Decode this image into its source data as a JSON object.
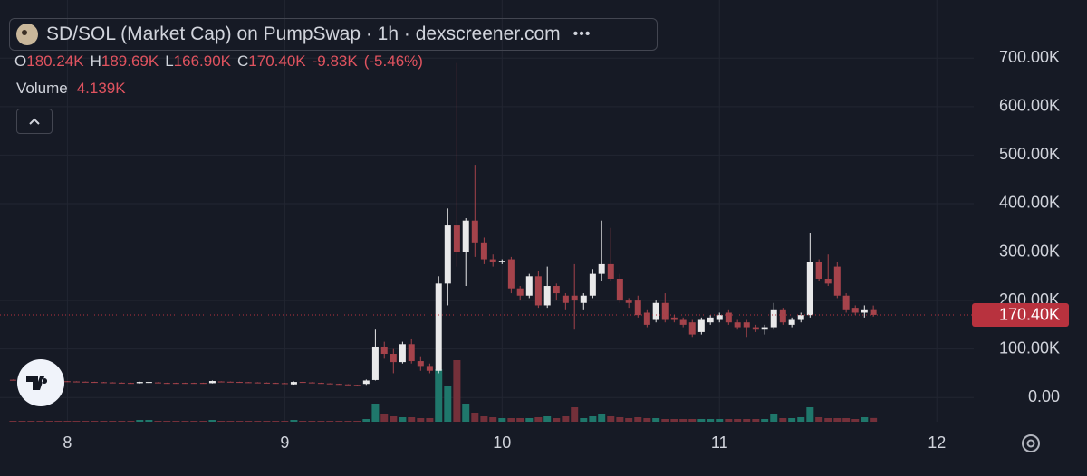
{
  "chart_data": {
    "type": "candlestick",
    "title": "SD/SOL (Market Cap) on PumpSwap · 1h · dexscreener.com",
    "ohlc": [
      {
        "key": "O",
        "value": 180240,
        "label": "180.24K"
      },
      {
        "key": "H",
        "value": 189690,
        "label": "189.69K"
      },
      {
        "key": "L",
        "value": 166900,
        "label": "166.90K"
      },
      {
        "key": "C",
        "value": 170400,
        "label": "170.40K"
      }
    ],
    "change": {
      "value": -9830,
      "label": "-9.83K"
    },
    "change_percent": {
      "value": -5.46,
      "label": "(-5.46%)"
    },
    "volume_title": "Volume",
    "volume_current": {
      "value": 4139,
      "label": "4.139K"
    },
    "last_price": {
      "value": 170400,
      "label": "170.40K"
    },
    "xlim": [
      7.69,
      12.17
    ],
    "xticks": [
      8,
      9,
      10,
      11,
      12
    ],
    "ylim": [
      -50000,
      820000
    ],
    "yticks": [
      {
        "value": 0,
        "label": "0.00"
      },
      {
        "value": 100000,
        "label": "100.00K"
      },
      {
        "value": 200000,
        "label": "200.00K"
      },
      {
        "value": 300000,
        "label": "300.00K"
      },
      {
        "value": 400000,
        "label": "400.00K"
      },
      {
        "value": 500000,
        "label": "500.00K"
      },
      {
        "value": 600000,
        "label": "600.00K"
      },
      {
        "value": 700000,
        "label": "700.00K"
      }
    ],
    "y2lim": [
      0,
      466000
    ],
    "grid": true,
    "up_color": "#e9e9ea",
    "down_color": "#a5434b",
    "volume_up_color": "#1f776b",
    "volume_down_color": "#74303a",
    "x": [
      7.75,
      7.792,
      7.833,
      7.875,
      7.917,
      7.958,
      8.0,
      8.042,
      8.083,
      8.125,
      8.167,
      8.208,
      8.25,
      8.292,
      8.333,
      8.375,
      8.417,
      8.458,
      8.5,
      8.542,
      8.583,
      8.625,
      8.667,
      8.708,
      8.75,
      8.792,
      8.833,
      8.875,
      8.917,
      8.958,
      9.0,
      9.042,
      9.083,
      9.125,
      9.167,
      9.208,
      9.25,
      9.292,
      9.333,
      9.375,
      9.417,
      9.458,
      9.5,
      9.542,
      9.583,
      9.625,
      9.667,
      9.708,
      9.75,
      9.792,
      9.833,
      9.875,
      9.917,
      9.958,
      10,
      10.042,
      10.083,
      10.125,
      10.167,
      10.208,
      10.25,
      10.292,
      10.333,
      10.375,
      10.417,
      10.458,
      10.5,
      10.542,
      10.583,
      10.625,
      10.667,
      10.708,
      10.75,
      10.792,
      10.833,
      10.875,
      10.917,
      10.958,
      11,
      11.042,
      11.083,
      11.125,
      11.167,
      11.208,
      11.25,
      11.292,
      11.333,
      11.375,
      11.417,
      11.458,
      11.5,
      11.542,
      11.583,
      11.625,
      11.667,
      11.708
    ],
    "open": [
      36500,
      36000,
      35500,
      35000,
      34500,
      34000,
      33500,
      33000,
      32500,
      32000,
      31500,
      31000,
      30500,
      30000,
      29500,
      30000,
      31000,
      30000,
      30000,
      30000,
      30000,
      30000,
      29500,
      33000,
      32500,
      32000,
      31500,
      31000,
      30500,
      30000,
      29500,
      27000,
      32000,
      31000,
      30000,
      29000,
      28000,
      27000,
      26000,
      28000,
      36000,
      105000,
      90000,
      73000,
      110000,
      75000,
      65000,
      55000,
      235000,
      355000,
      300000,
      365000,
      320000,
      285000,
      280000,
      285000,
      225000,
      210000,
      250000,
      190000,
      230000,
      210000,
      210000,
      195000,
      210000,
      255000,
      275000,
      245000,
      200000,
      200000,
      175000,
      160000,
      195000,
      165000,
      160000,
      155000,
      135000,
      155000,
      160000,
      175000,
      155000,
      155000,
      145000,
      140000,
      145000,
      180000,
      150000,
      160000,
      170000,
      280000,
      245000,
      270000,
      210000,
      185000,
      175000,
      180240
    ],
    "high": [
      37000,
      36500,
      36000,
      35500,
      35000,
      34500,
      34000,
      33500,
      33000,
      32500,
      32000,
      31500,
      31000,
      30500,
      32500,
      32500,
      31500,
      30500,
      30500,
      30500,
      30500,
      30500,
      35000,
      33500,
      33000,
      32500,
      32000,
      31500,
      31000,
      30500,
      30000,
      33000,
      32500,
      31500,
      30500,
      29500,
      28500,
      27500,
      26500,
      37000,
      140000,
      115000,
      100000,
      115000,
      120000,
      85000,
      70000,
      250000,
      390000,
      690000,
      370000,
      480000,
      330000,
      295000,
      285000,
      290000,
      230000,
      255000,
      260000,
      270000,
      235000,
      215000,
      275000,
      215000,
      265000,
      365000,
      350000,
      255000,
      205000,
      210000,
      180000,
      200000,
      215000,
      170000,
      165000,
      160000,
      165000,
      170000,
      175000,
      180000,
      160000,
      160000,
      150000,
      150000,
      195000,
      185000,
      165000,
      175000,
      340000,
      285000,
      295000,
      280000,
      215000,
      190000,
      190000,
      189690
    ],
    "low": [
      35500,
      35000,
      34500,
      34000,
      33500,
      33000,
      32500,
      32000,
      31500,
      31000,
      30500,
      30000,
      29500,
      29000,
      29000,
      29500,
      29500,
      29000,
      29000,
      29000,
      29000,
      29000,
      29000,
      32000,
      31500,
      31000,
      30500,
      30000,
      29500,
      29000,
      28500,
      26500,
      30500,
      29500,
      28500,
      27500,
      26500,
      25500,
      25000,
      26000,
      35000,
      80000,
      50000,
      70000,
      70000,
      55000,
      50000,
      50000,
      190000,
      270000,
      230000,
      290000,
      275000,
      270000,
      275000,
      215000,
      200000,
      205000,
      185000,
      185000,
      200000,
      180000,
      140000,
      180000,
      205000,
      240000,
      240000,
      195000,
      185000,
      165000,
      145000,
      155000,
      155000,
      155000,
      145000,
      125000,
      130000,
      150000,
      155000,
      150000,
      140000,
      125000,
      135000,
      130000,
      140000,
      150000,
      145000,
      155000,
      165000,
      240000,
      230000,
      205000,
      175000,
      170000,
      165000,
      166900
    ],
    "close": [
      36000,
      35500,
      35000,
      34500,
      34000,
      33500,
      33000,
      32500,
      32000,
      31500,
      31000,
      30500,
      30000,
      29500,
      32000,
      32000,
      30000,
      29500,
      29500,
      29500,
      29500,
      29500,
      34000,
      32500,
      32000,
      31500,
      31000,
      30500,
      30000,
      29500,
      29000,
      32000,
      31000,
      30000,
      29000,
      28000,
      27000,
      26000,
      25500,
      35000,
      105000,
      90000,
      73000,
      110000,
      75000,
      65000,
      55000,
      235000,
      355000,
      300000,
      365000,
      320000,
      285000,
      280000,
      282000,
      225000,
      210000,
      250000,
      190000,
      230000,
      215000,
      195000,
      200000,
      210000,
      255000,
      275000,
      245000,
      200000,
      195000,
      170000,
      150000,
      195000,
      160000,
      160000,
      150000,
      130000,
      160000,
      165000,
      170000,
      155000,
      145000,
      145000,
      140000,
      145000,
      180000,
      155000,
      160000,
      170000,
      280000,
      245000,
      235000,
      210000,
      180000,
      175000,
      180000,
      170400
    ],
    "volume": [
      1000,
      1000,
      1000,
      1000,
      1000,
      1000,
      1000,
      1000,
      1000,
      1000,
      1000,
      1000,
      1000,
      1000,
      2000,
      2000,
      1000,
      1000,
      1000,
      1000,
      1000,
      1000,
      2000,
      1000,
      1000,
      1000,
      1000,
      1000,
      1000,
      1000,
      1000,
      2000,
      1000,
      1000,
      1000,
      1000,
      1000,
      1000,
      1000,
      3000,
      20000,
      8000,
      6000,
      5000,
      5000,
      4000,
      4000,
      58000,
      40000,
      68000,
      20000,
      10000,
      6000,
      5000,
      4000,
      4000,
      4000,
      4000,
      5000,
      6000,
      4000,
      6000,
      16000,
      4000,
      6000,
      8000,
      6000,
      5000,
      4000,
      5000,
      4000,
      4000,
      3000,
      3000,
      3000,
      3000,
      3000,
      3000,
      3000,
      3000,
      3000,
      3000,
      3000,
      3000,
      8000,
      4000,
      4000,
      5000,
      16000,
      5000,
      4000,
      4000,
      4000,
      3000,
      5000,
      4139
    ]
  }
}
